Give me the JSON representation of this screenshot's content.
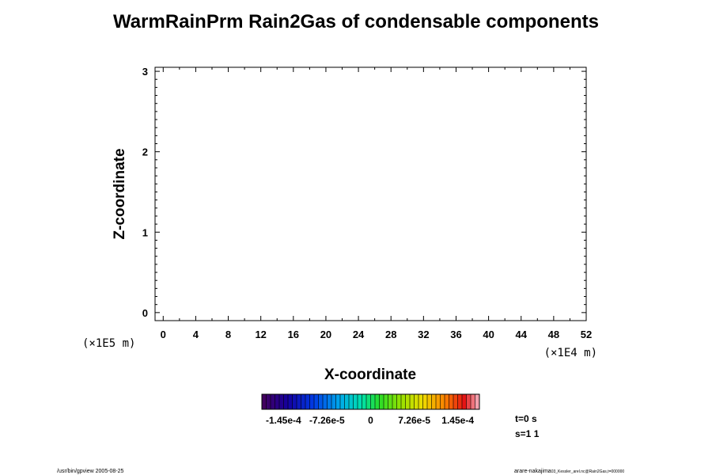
{
  "chart_data": {
    "type": "heatmap",
    "title": "WarmRainPrm Rain2Gas of condensable components",
    "xlabel": "X-coordinate",
    "ylabel": "Z-coordinate",
    "x_unit": "(×1E4 m)",
    "y_unit": "(×1E5 m)",
    "xlim": [
      -1,
      52
    ],
    "ylim": [
      -0.1,
      3.05
    ],
    "x_ticks": [
      "0",
      "4",
      "8",
      "12",
      "16",
      "20",
      "24",
      "28",
      "32",
      "36",
      "40",
      "44",
      "48",
      "52"
    ],
    "y_ticks": [
      "0",
      "1",
      "2",
      "3"
    ],
    "values": [],
    "colorbar": {
      "labels": [
        "-1.45e-4",
        "-7.26e-5",
        "0",
        "7.26e-5",
        "1.45e-4"
      ],
      "range": [
        -0.000181,
        0.000181
      ]
    },
    "annotations": {
      "time": "t=0 s",
      "step": "s=1 1"
    }
  },
  "footer": {
    "left": "/usr/bin/gpview 2005-08-25",
    "right_main": "arare-nakajima",
    "right_small": "03_Kessler_arel.nc@Rain2Gas,t=000000"
  }
}
